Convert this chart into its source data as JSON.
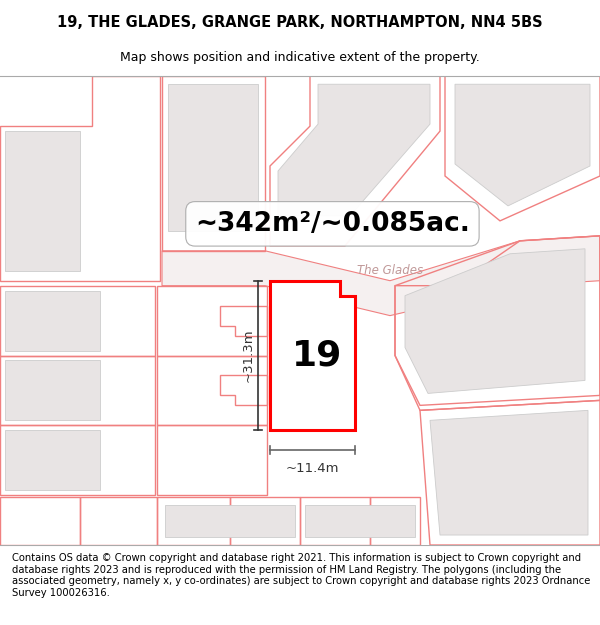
{
  "title": "19, THE GLADES, GRANGE PARK, NORTHAMPTON, NN4 5BS",
  "subtitle": "Map shows position and indicative extent of the property.",
  "area_text": "~342m²/~0.085ac.",
  "number_label": "19",
  "width_label": "~11.4m",
  "height_label": "~31.3m",
  "footer": "Contains OS data © Crown copyright and database right 2021. This information is subject to Crown copyright and database rights 2023 and is reproduced with the permission of HM Land Registry. The polygons (including the associated geometry, namely x, y co-ordinates) are subject to Crown copyright and database rights 2023 Ordnance Survey 100026316.",
  "bg_color": "#ffffff",
  "map_bg": "#ffffff",
  "building_fill": "#e8e4e4",
  "plot_edge_color": "#ff0000",
  "plot_fill": "#ffffff",
  "neighbor_edge": "#f08080",
  "dim_line_color": "#333333",
  "road_label_color": "#c09898",
  "title_fontsize": 10.5,
  "subtitle_fontsize": 9,
  "area_fontsize": 19,
  "number_fontsize": 26,
  "dim_fontsize": 9.5,
  "footer_fontsize": 7.2,
  "map_border_color": "#cccccc"
}
